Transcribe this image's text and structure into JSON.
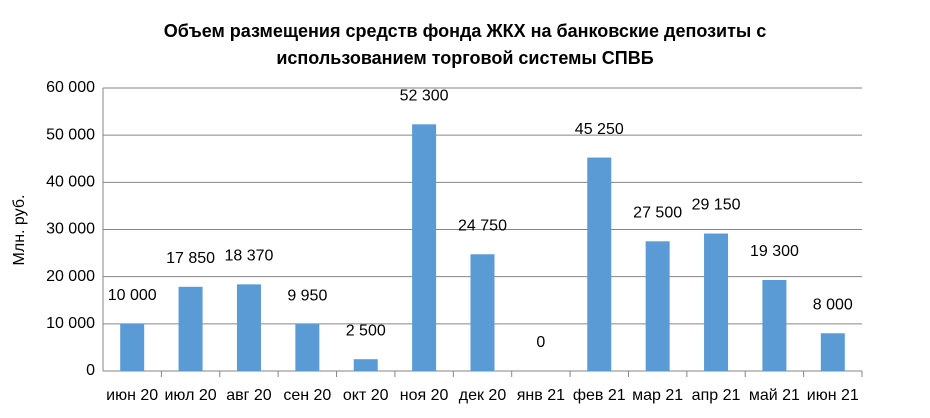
{
  "chart_data": {
    "type": "bar",
    "title": "Объем размещения средств фонда ЖКХ на банковские депозиты с использованием торговой системы СПВБ",
    "y_label": "Млн. руб.",
    "categories": [
      "июн 20",
      "июл 20",
      "авг 20",
      "сен 20",
      "окт 20",
      "ноя 20",
      "дек 20",
      "янв 21",
      "фев 21",
      "мар 21",
      "апр 21",
      "май 21",
      "июн 21"
    ],
    "values": [
      10000,
      17850,
      18370,
      9950,
      2500,
      52300,
      24750,
      0,
      45250,
      27500,
      29150,
      19300,
      8000
    ],
    "value_labels": [
      "10 000",
      "17 850",
      "18 370",
      "9 950",
      "2 500",
      "52 300",
      "24 750",
      "0",
      "45 250",
      "27 500",
      "29 150",
      "19 300",
      "8 000"
    ],
    "color": "#5b9bd5",
    "ylim": [
      0,
      60000
    ],
    "yticks": [
      0,
      {
        "value": 10000,
        "label": "10 000"
      },
      {
        "value": 20000,
        "label": "20 000"
      },
      {
        "value": 30000,
        "label": "30 000"
      },
      {
        "value": 40000,
        "label": "40 000"
      },
      {
        "value": 50000,
        "label": "50 000"
      },
      {
        "value": 60000,
        "label": "60 000"
      }
    ],
    "grid": true
  }
}
